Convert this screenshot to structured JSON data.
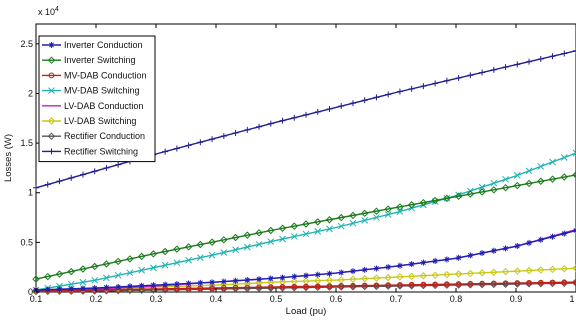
{
  "chart_data": {
    "type": "line",
    "title": "",
    "xlabel": "Load (pu)",
    "ylabel": "Losses (W)",
    "y_exponent_label": "x 10",
    "y_exponent_power": "4",
    "xlim": [
      0.1,
      1.0
    ],
    "ylim": [
      0,
      2.7
    ],
    "x_ticks": [
      0.1,
      0.2,
      0.3,
      0.4,
      0.5,
      0.6,
      0.7,
      0.8,
      0.9,
      1.0
    ],
    "x_tick_labels": [
      "0.1",
      "0.2",
      "0.3",
      "0.4",
      "0.5",
      "0.6",
      "0.7",
      "0.8",
      "0.9",
      "1"
    ],
    "y_ticks": [
      0,
      0.5,
      1,
      1.5,
      2,
      2.5
    ],
    "y_tick_labels": [
      "0",
      "0.5",
      "1",
      "1.5",
      "2",
      "2.5"
    ],
    "grid": false,
    "legend_position": "top-left",
    "x": [
      0.1,
      0.2,
      0.3,
      0.4,
      0.5,
      0.6,
      0.7,
      0.8,
      0.9,
      1.0
    ],
    "series": [
      {
        "name": "Inverter Conduction",
        "color": "#1f1fb4",
        "marker": "star",
        "values": [
          0.02,
          0.04,
          0.07,
          0.1,
          0.14,
          0.19,
          0.26,
          0.34,
          0.46,
          0.62
        ]
      },
      {
        "name": "Inverter Switching",
        "color": "#1a7a1a",
        "marker": "diamond",
        "values": [
          0.13,
          0.26,
          0.39,
          0.51,
          0.63,
          0.74,
          0.85,
          0.96,
          1.07,
          1.18
        ]
      },
      {
        "name": "MV-DAB Conduction",
        "color": "#c0201a",
        "marker": "circle",
        "values": [
          0.01,
          0.02,
          0.03,
          0.04,
          0.05,
          0.06,
          0.07,
          0.08,
          0.09,
          0.1
        ]
      },
      {
        "name": "MV-DAB Switching",
        "color": "#20b2b2",
        "marker": "x",
        "values": [
          0.02,
          0.12,
          0.25,
          0.38,
          0.52,
          0.65,
          0.8,
          0.97,
          1.17,
          1.4
        ]
      },
      {
        "name": "LV-DAB Conduction",
        "color": "#c020c0",
        "marker": "none",
        "values": [
          0.01,
          0.03,
          0.06,
          0.1,
          0.14,
          0.19,
          0.26,
          0.34,
          0.46,
          0.63
        ]
      },
      {
        "name": "LV-DAB Switching",
        "color": "#c8c81a",
        "marker": "diamond",
        "values": [
          0.01,
          0.03,
          0.05,
          0.07,
          0.1,
          0.12,
          0.15,
          0.18,
          0.21,
          0.24
        ]
      },
      {
        "name": "Rectifier Conduction",
        "color": "#555555",
        "marker": "diamond",
        "values": [
          0.005,
          0.01,
          0.02,
          0.03,
          0.04,
          0.05,
          0.06,
          0.07,
          0.08,
          0.09
        ]
      },
      {
        "name": "Rectifier Switching",
        "color": "#20208c",
        "marker": "plus",
        "values": [
          1.05,
          1.22,
          1.39,
          1.55,
          1.71,
          1.86,
          2.01,
          2.15,
          2.29,
          2.43
        ]
      }
    ]
  }
}
